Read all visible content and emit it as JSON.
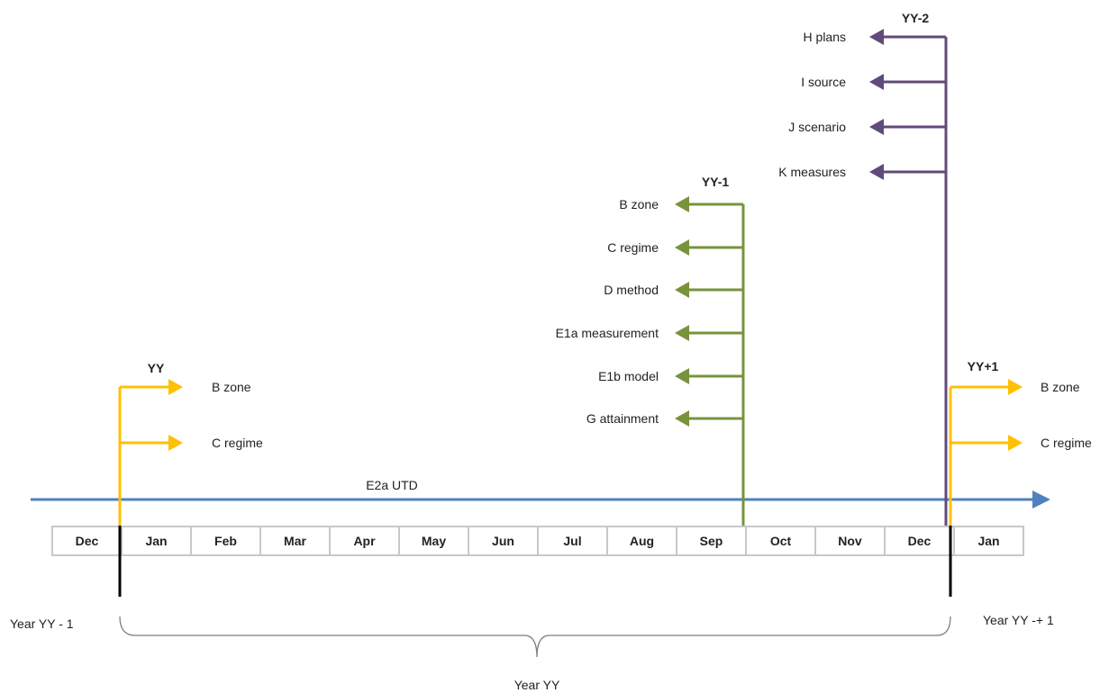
{
  "colors": {
    "yellow": "#FFC000",
    "green": "#77933C",
    "purple": "#604A7B",
    "blue": "#4F81BD",
    "month_border": "#C8C8C8",
    "text": "#222222"
  },
  "months": [
    "Dec",
    "Jan",
    "Feb",
    "Mar",
    "Apr",
    "May",
    "Jun",
    "Jul",
    "Aug",
    "Sep",
    "Oct",
    "Nov",
    "Dec",
    "Jan"
  ],
  "timeline": {
    "label": "E2a UTD"
  },
  "groups": [
    {
      "id": "yy",
      "title": "YY",
      "color": "yellow",
      "direction": "right",
      "items": [
        "B zone",
        "C regime"
      ]
    },
    {
      "id": "yy-minus-1",
      "title": "YY-1",
      "color": "green",
      "direction": "left",
      "items": [
        "B zone",
        "C regime",
        "D method",
        "E1a measurement",
        "E1b model",
        "G attainment"
      ]
    },
    {
      "id": "yy-minus-2",
      "title": "YY-2",
      "color": "purple",
      "direction": "left",
      "items": [
        "H plans",
        "I source",
        "J scenario",
        "K measures"
      ]
    },
    {
      "id": "yy-plus-1",
      "title": "YY+1",
      "color": "yellow",
      "direction": "right",
      "items": [
        "B zone",
        "C regime"
      ]
    }
  ],
  "years": {
    "prev": "Year YY - 1",
    "current": "Year YY",
    "next": "Year YY -+ 1"
  }
}
